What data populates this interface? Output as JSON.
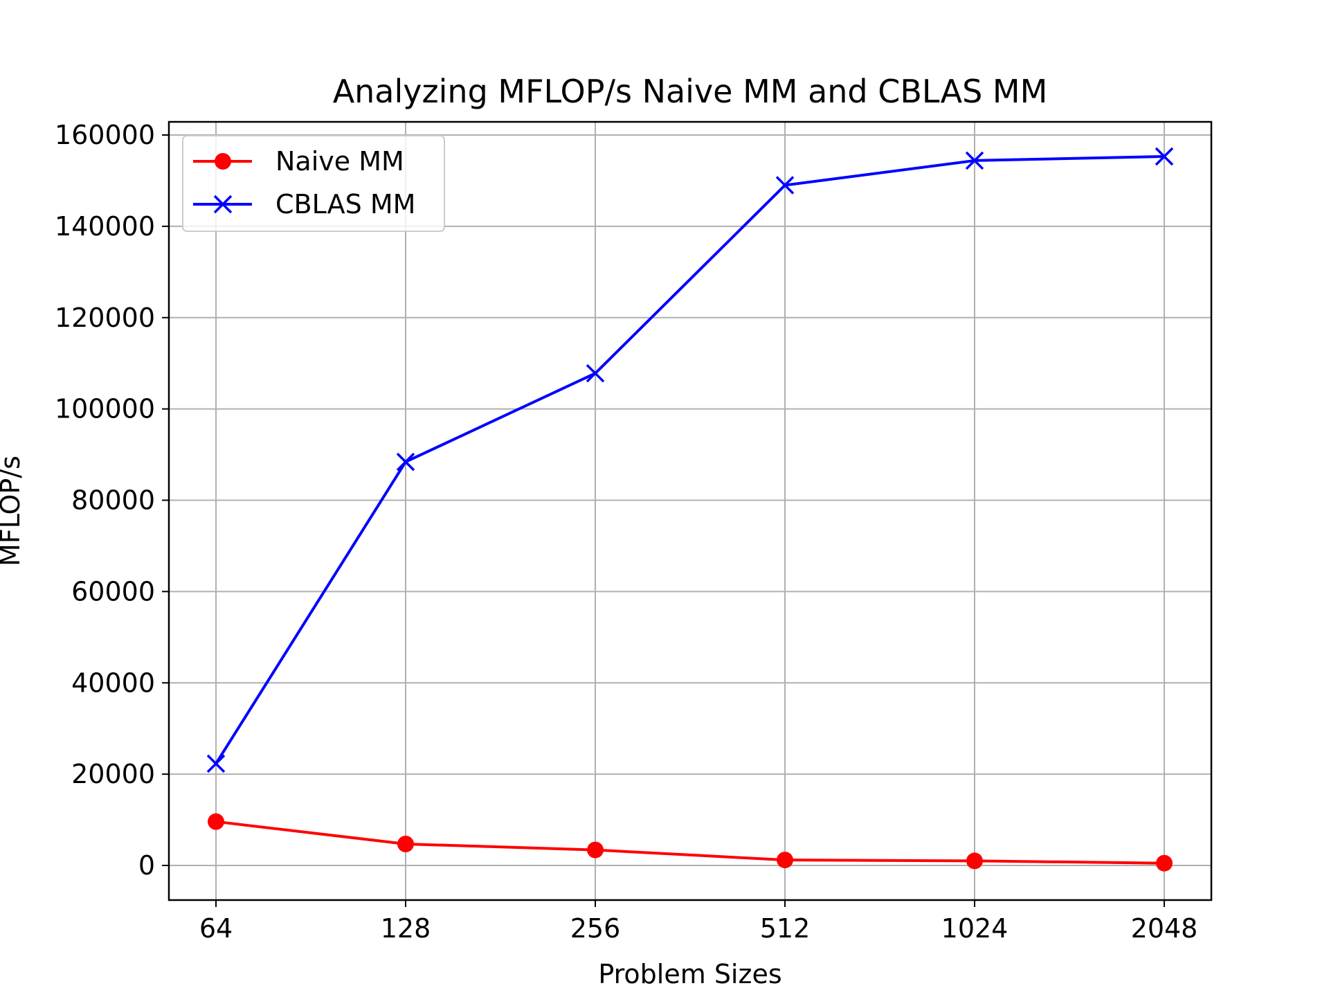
{
  "chart_data": {
    "type": "line",
    "title": "Analyzing MFLOP/s Naive MM and CBLAS MM",
    "xlabel": "Problem Sizes",
    "ylabel": "MFLOP/s",
    "categories": [
      "64",
      "128",
      "256",
      "512",
      "1024",
      "2048"
    ],
    "ylim": [
      -7500,
      163000
    ],
    "yticks": [
      0,
      20000,
      40000,
      60000,
      80000,
      100000,
      120000,
      140000,
      160000
    ],
    "grid": true,
    "legend_position": "upper-left",
    "series": [
      {
        "name": "Naive MM",
        "color": "#ff0000",
        "marker": "circle",
        "values": [
          9600,
          4700,
          3400,
          1200,
          1000,
          500
        ]
      },
      {
        "name": "CBLAS MM",
        "color": "#0000ff",
        "marker": "x",
        "values": [
          22300,
          88400,
          107800,
          149000,
          154400,
          155300
        ]
      }
    ]
  }
}
